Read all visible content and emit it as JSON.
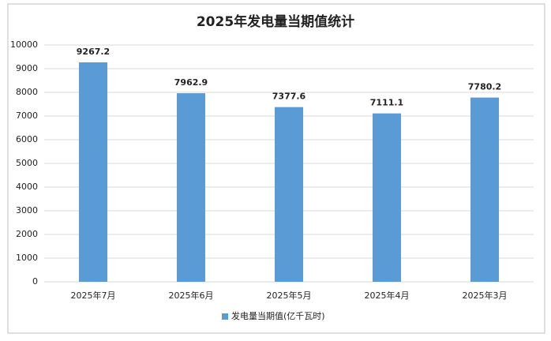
{
  "chart_data": {
    "type": "bar",
    "title": "2025年发电量当期值统计",
    "categories": [
      "2025年7月",
      "2025年6月",
      "2025年5月",
      "2025年4月",
      "2025年3月"
    ],
    "series": [
      {
        "name": "发电量当期值(亿千瓦时)",
        "color": "#5b9bd5",
        "values": [
          9267.2,
          7962.9,
          7377.6,
          7111.1,
          7780.2
        ]
      }
    ],
    "ylim": [
      0,
      10000
    ],
    "yticks": [
      0,
      1000,
      2000,
      3000,
      4000,
      5000,
      6000,
      7000,
      8000,
      9000,
      10000
    ],
    "grid": true,
    "legend": "bottom"
  }
}
